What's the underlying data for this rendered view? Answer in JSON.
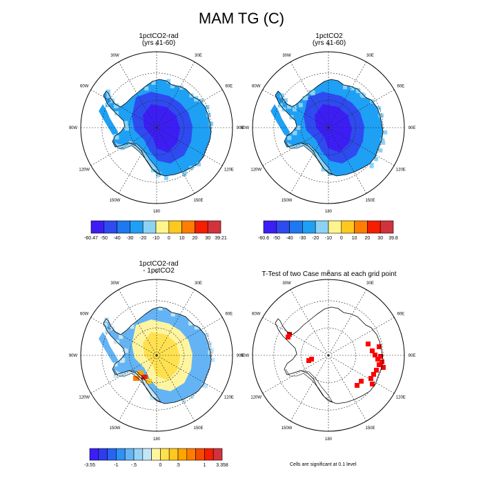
{
  "figure": {
    "title": "MAM TG (C)",
    "footnote": "Cells are significant at 0.1 level"
  },
  "longitude_labels": [
    "0",
    "30E",
    "60E",
    "90E",
    "120E",
    "150E",
    "180",
    "150W",
    "120W",
    "90W",
    "60W",
    "30W"
  ],
  "chart_data": [
    {
      "type": "heatmap",
      "title_lines": [
        "1pctCO2-rad",
        "(yrs 41-60)"
      ],
      "projection": "south polar stereographic",
      "colorbar": {
        "labels": [
          "-60.47",
          "-50",
          "-40",
          "-30",
          "-20",
          "-10",
          "0",
          "10",
          "20",
          "30",
          "39.21"
        ],
        "colors": [
          "#3c1ef5",
          "#2e4bf0",
          "#1e78f0",
          "#1ea0f5",
          "#8cd2f5",
          "#fff58c",
          "#ffc81e",
          "#ff7d00",
          "#f51e00",
          "#d2323c"
        ],
        "min": -60.47,
        "max": 39.21
      }
    },
    {
      "type": "heatmap",
      "title_lines": [
        "1pctCO2",
        "(yrs 41-60)"
      ],
      "projection": "south polar stereographic",
      "colorbar": {
        "labels": [
          "-60.6",
          "-50",
          "-40",
          "-30",
          "-20",
          "-10",
          "0",
          "10",
          "20",
          "30",
          "39.8"
        ],
        "colors": [
          "#3c1ef5",
          "#2e4bf0",
          "#1e78f0",
          "#1ea0f5",
          "#8cd2f5",
          "#fff58c",
          "#ffc81e",
          "#ff7d00",
          "#f51e00",
          "#d2323c"
        ],
        "min": -60.6,
        "max": 39.8
      }
    },
    {
      "type": "heatmap",
      "title_lines": [
        "1pctCO2-rad",
        "- 1pctCO2"
      ],
      "projection": "south polar stereographic",
      "colorbar": {
        "labels": [
          "-3.55",
          "-1",
          "-.5",
          "0",
          ".5",
          "1",
          "3.358"
        ],
        "colors": [
          "#3c1ef5",
          "#2e3cf0",
          "#2864f0",
          "#2d91f5",
          "#64b4f5",
          "#96d2f5",
          "#c3e6f5",
          "#fff5a0",
          "#ffe150",
          "#ffc81e",
          "#ffa500",
          "#ff7d00",
          "#f54b00",
          "#f51e00",
          "#d2323c"
        ],
        "min": -3.55,
        "max": 3.358
      }
    },
    {
      "type": "heatmap",
      "title_lines": [
        "T-Test of two Case means at each grid point"
      ],
      "projection": "south polar stereographic",
      "significance_color": "#ff0000"
    }
  ]
}
